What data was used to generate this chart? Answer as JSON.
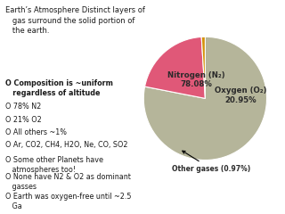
{
  "title_text": "Earth’s Atmosphere Distinct layers of\n   gas surround the solid portion of\n   the earth.",
  "bullet_lines": [
    {
      "text": "Composition is ~uniform\n   regardless of altitude",
      "bold": true
    },
    {
      "text": "78% N2",
      "bold": false
    },
    {
      "text": "21% O2",
      "bold": false
    },
    {
      "text": "All others ~1%",
      "bold": false
    },
    {
      "text": "Ar, CO2, CH4, H2O, Ne, CO, SO2",
      "bold": false
    },
    {
      "text": "Some other Planets have\n   atmospheres too!",
      "bold": false
    },
    {
      "text": "None have N2 & O2 as dominant\n   gasses",
      "bold": false
    },
    {
      "text": "Earth was oxygen-free until ~2.5\n   Ga",
      "bold": false
    }
  ],
  "pie_values": [
    78.08,
    20.95,
    0.97
  ],
  "pie_labels_inside": [
    "Nitrogen (N₂)\n78.08%",
    "Oxygen (O₂)\n20.95%"
  ],
  "pie_label_outside": "Other gases (0.97%)",
  "pie_colors": [
    "#b5b59a",
    "#e05878",
    "#d4920a"
  ],
  "background_color": "#ffffff",
  "text_color": "#1a1a1a",
  "bullet_char": "O",
  "title_fontsize": 6.0,
  "bullet_fontsize": 5.8,
  "pie_label_fontsize": 6.2,
  "pie_outside_fontsize": 5.5
}
